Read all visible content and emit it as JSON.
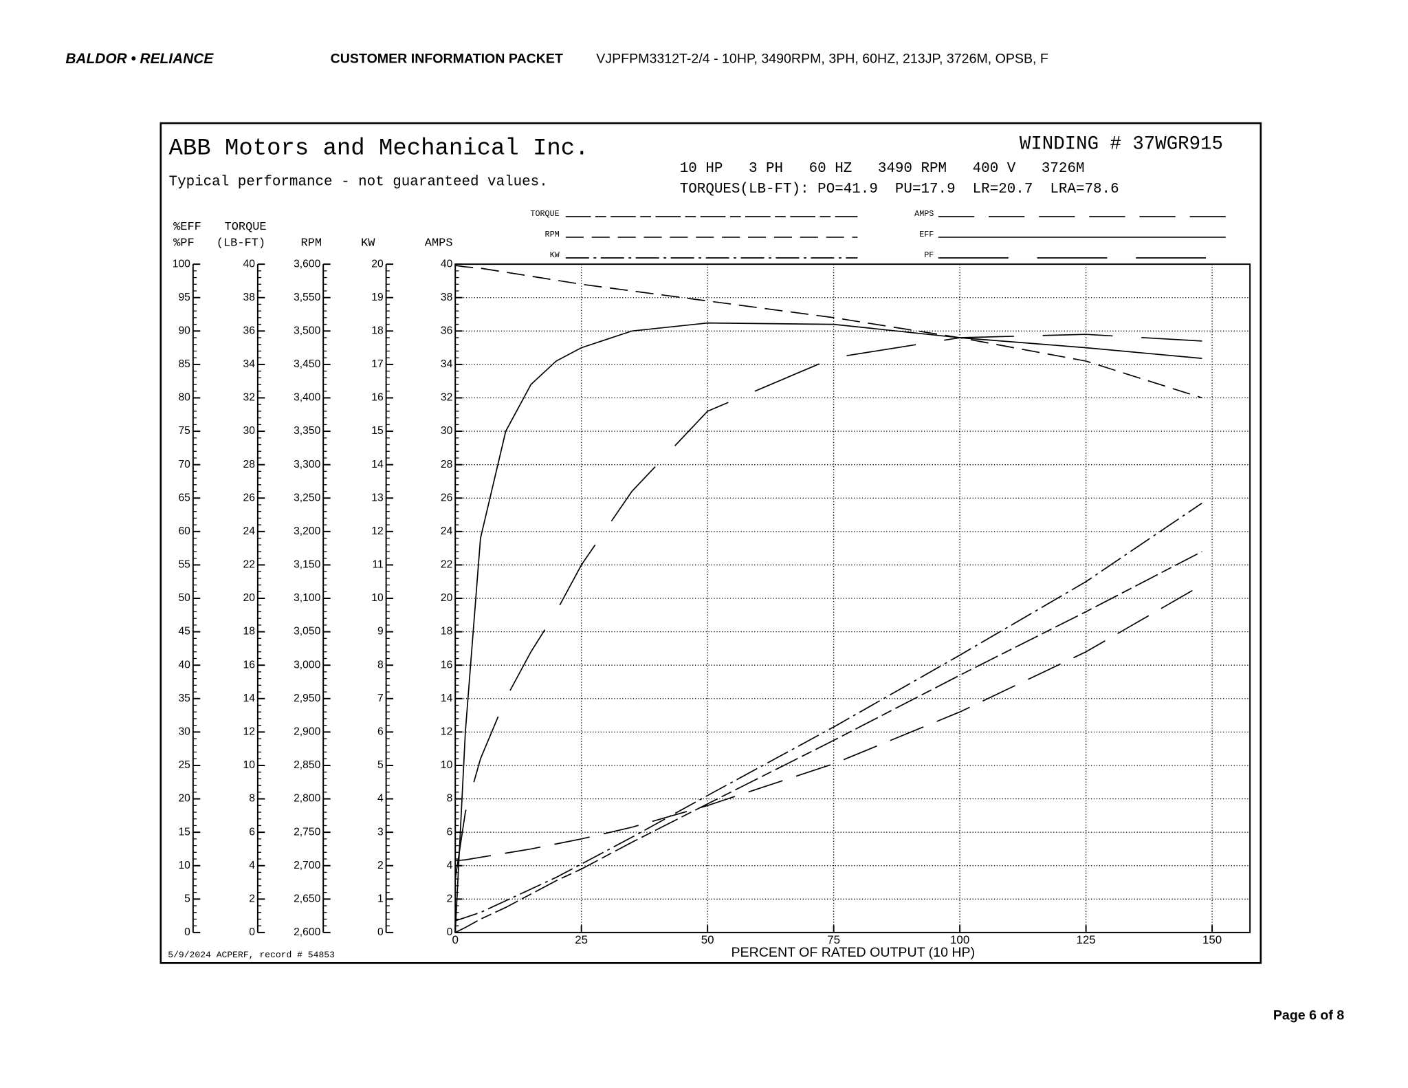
{
  "header": {
    "logo": "BALDOR • RELIANCE",
    "packet": "CUSTOMER INFORMATION PACKET",
    "model": "VJPFPM3312T-2/4 - 10HP, 3490RPM, 3PH, 60HZ, 213JP, 3726M, OPSB, F"
  },
  "page": "Page 6 of 8",
  "chart_data": {
    "type": "line",
    "title": "ABB Motors and Mechanical Inc.",
    "subtitle": "Typical performance - not guaranteed values.",
    "winding": "WINDING # 37WGR915",
    "ratings": "10 HP   3 PH   60 HZ   3490 RPM   400 V   3726M",
    "torques": "TORQUES(LB-FT): PO=41.9  PU=17.9  LR=20.7  LRA=78.6",
    "footnote": "5/9/2024 ACPERF, record # 54853",
    "x_label": "PERCENT OF RATED OUTPUT (10 HP)",
    "xlim": [
      0,
      157.5
    ],
    "xticks": [
      0,
      25,
      50,
      75,
      100,
      125,
      150
    ],
    "grid": true,
    "axes": [
      {
        "labels": [
          "%EFF",
          "%PF"
        ],
        "lim": [
          0,
          100
        ],
        "ticks": [
          0,
          5,
          10,
          15,
          20,
          25,
          30,
          35,
          40,
          45,
          50,
          55,
          60,
          65,
          70,
          75,
          80,
          85,
          90,
          95,
          100
        ]
      },
      {
        "labels": [
          "TORQUE",
          "(LB-FT)"
        ],
        "lim": [
          0,
          40
        ],
        "ticks": [
          0,
          2,
          4,
          6,
          8,
          10,
          12,
          14,
          16,
          18,
          20,
          22,
          24,
          26,
          28,
          30,
          32,
          34,
          36,
          38,
          40
        ]
      },
      {
        "labels": [
          "RPM"
        ],
        "lim": [
          2600,
          3600
        ],
        "ticks": [
          {
            "value": 2600,
            "label": "2,600"
          },
          {
            "value": 2650,
            "label": "2,650"
          },
          {
            "value": 2700,
            "label": "2,700"
          },
          {
            "value": 2750,
            "label": "2,750"
          },
          {
            "value": 2800,
            "label": "2,800"
          },
          {
            "value": 2850,
            "label": "2,850"
          },
          {
            "value": 2900,
            "label": "2,900"
          },
          {
            "value": 2950,
            "label": "2,950"
          },
          {
            "value": 3000,
            "label": "3,000"
          },
          {
            "value": 3050,
            "label": "3,050"
          },
          {
            "value": 3100,
            "label": "3,100"
          },
          {
            "value": 3150,
            "label": "3,150"
          },
          {
            "value": 3200,
            "label": "3,200"
          },
          {
            "value": 3250,
            "label": "3,250"
          },
          {
            "value": 3300,
            "label": "3,300"
          },
          {
            "value": 3350,
            "label": "3,350"
          },
          {
            "value": 3400,
            "label": "3,400"
          },
          {
            "value": 3450,
            "label": "3,450"
          },
          {
            "value": 3500,
            "label": "3,500"
          },
          {
            "value": 3550,
            "label": "3,550"
          },
          {
            "value": 3600,
            "label": "3,600"
          }
        ]
      },
      {
        "labels": [
          "KW"
        ],
        "lim": [
          0,
          20
        ],
        "ticks": [
          0,
          1,
          2,
          3,
          4,
          5,
          6,
          7,
          8,
          9,
          10,
          11,
          12,
          13,
          14,
          15,
          16,
          17,
          18,
          19,
          20
        ]
      },
      {
        "labels": [
          "AMPS"
        ],
        "lim": [
          0,
          40
        ],
        "ticks": [
          0,
          2,
          4,
          6,
          8,
          10,
          12,
          14,
          16,
          18,
          20,
          22,
          24,
          26,
          28,
          30,
          32,
          34,
          36,
          38,
          40
        ]
      }
    ],
    "x": [
      0,
      2,
      5,
      10,
      15,
      20,
      25,
      35,
      50,
      75,
      100,
      125,
      148
    ],
    "series": [
      {
        "name": "TORQUE",
        "axis": 1,
        "color": "#000000",
        "values": [
          0,
          0.3,
          0.8,
          1.5,
          2.3,
          3.1,
          3.8,
          5.4,
          7.7,
          11.5,
          15.4,
          19.2,
          22.8
        ]
      },
      {
        "name": "RPM",
        "axis": 2,
        "color": "#000000",
        "values": [
          3598,
          3596,
          3594,
          3588,
          3582,
          3576,
          3570,
          3560,
          3545,
          3520,
          3490,
          3455,
          3400
        ]
      },
      {
        "name": "KW",
        "axis": 3,
        "color": "#000000",
        "values": [
          0.35,
          0.45,
          0.6,
          0.95,
          1.3,
          1.65,
          2.05,
          2.85,
          4.1,
          6.15,
          8.3,
          10.5,
          12.85
        ]
      },
      {
        "name": "AMPS",
        "axis": 4,
        "color": "#000000",
        "values": [
          4.3,
          4.35,
          4.5,
          4.75,
          5.0,
          5.3,
          5.6,
          6.3,
          7.6,
          10.1,
          13.2,
          16.8,
          20.8
        ]
      },
      {
        "name": "EFF",
        "axis": 0,
        "color": "#000000",
        "values": [
          0,
          30,
          59,
          75,
          82,
          85.5,
          87.5,
          90,
          91.2,
          91,
          89,
          87.5,
          85.9
        ]
      },
      {
        "name": "PF",
        "axis": 0,
        "color": "#000000",
        "values": [
          8,
          18,
          26,
          35,
          42,
          48,
          55,
          66,
          78,
          86,
          89,
          89.5,
          88.5
        ]
      }
    ]
  }
}
